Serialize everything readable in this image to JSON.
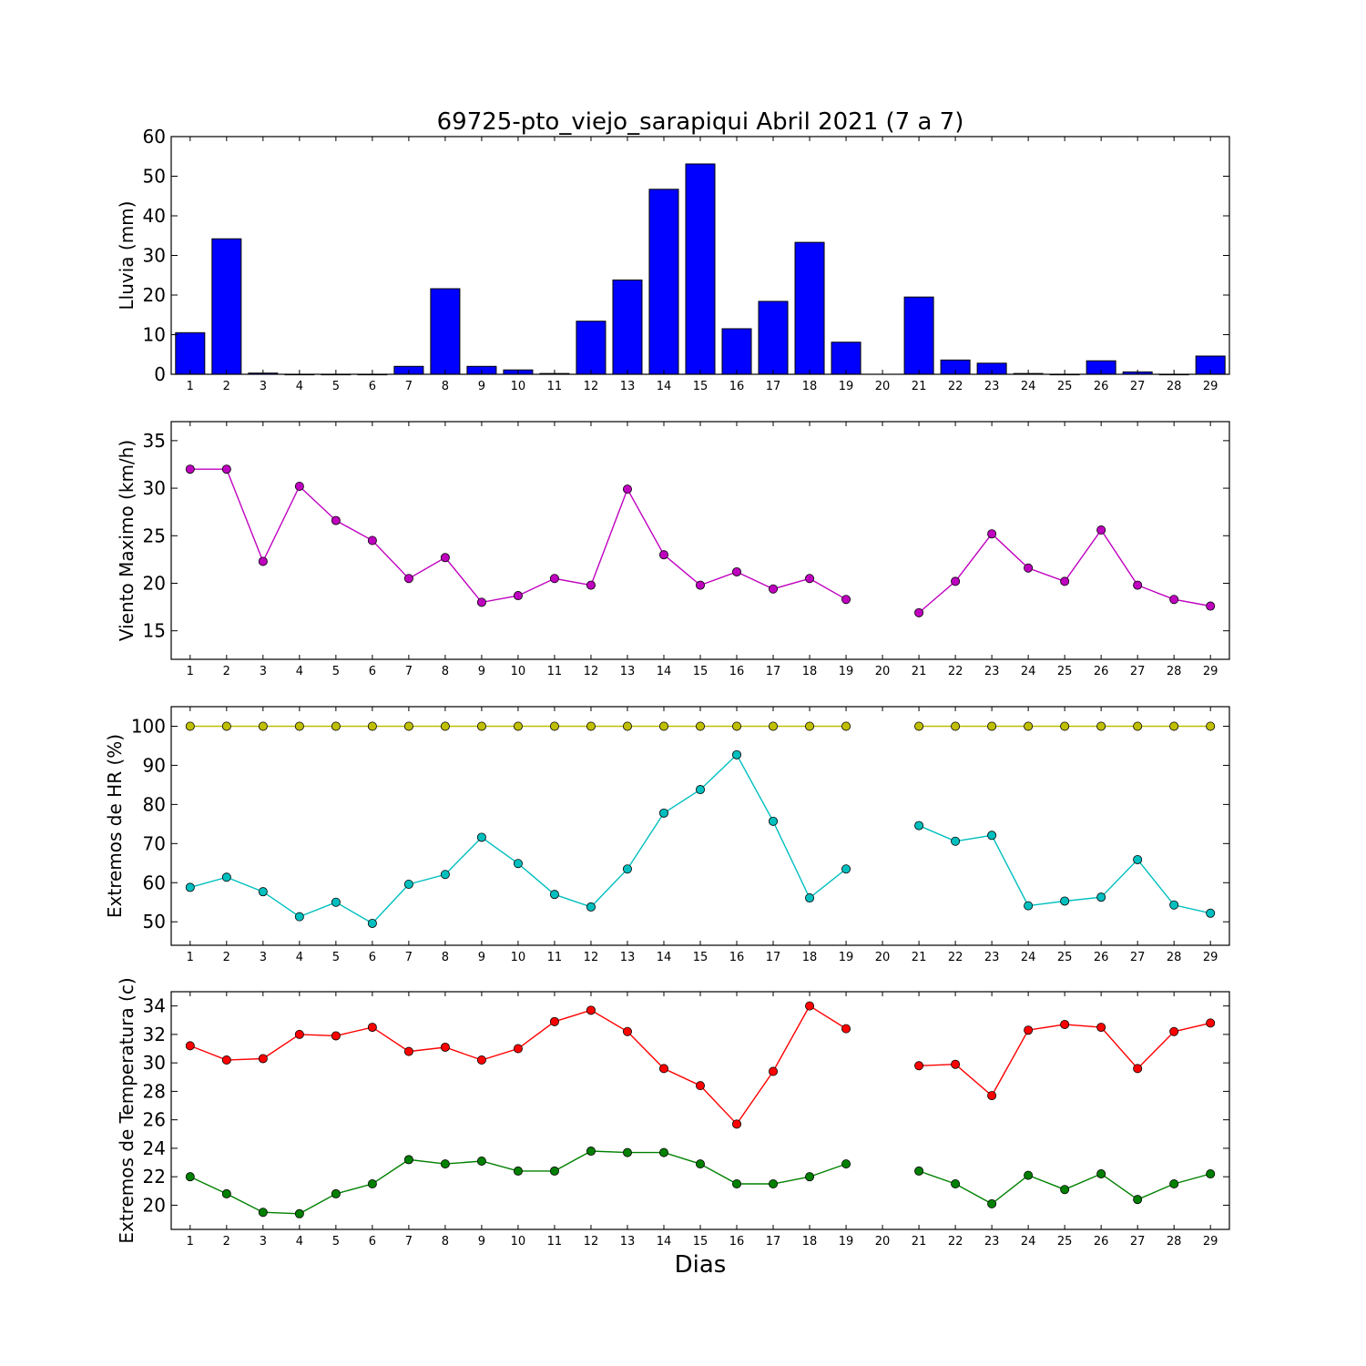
{
  "title": "69725-pto_viejo_sarapiqui Abril 2021  (7 a 7)",
  "xlabel": "Dias",
  "colors": {
    "rain": "#0000ff",
    "wind": "#bf00bf",
    "hr_max": "#bfbf00",
    "hr_min": "#00bfbf",
    "t_max": "#ff0000",
    "t_min": "#008000"
  },
  "chart_data": [
    {
      "type": "bar",
      "ylabel": "Lluvia (mm)",
      "categories": [
        "1",
        "2",
        "3",
        "4",
        "5",
        "6",
        "7",
        "8",
        "9",
        "10",
        "11",
        "12",
        "13",
        "14",
        "15",
        "16",
        "17",
        "18",
        "19",
        "20",
        "21",
        "22",
        "23",
        "24",
        "25",
        "26",
        "27",
        "28",
        "29"
      ],
      "ylim": [
        0,
        60
      ],
      "yticks": [
        0,
        10,
        20,
        30,
        40,
        50,
        60
      ],
      "values": [
        10.5,
        34.2,
        0.3,
        0.0,
        0.0,
        0.0,
        2.0,
        21.6,
        2.0,
        1.1,
        0.2,
        13.4,
        23.8,
        46.7,
        53.1,
        11.5,
        18.4,
        33.3,
        8.1,
        null,
        19.5,
        3.6,
        2.8,
        0.2,
        0.0,
        3.4,
        0.6,
        0.0,
        4.6
      ]
    },
    {
      "type": "line",
      "ylabel": "Viento Maximo (km/h)",
      "categories": [
        "1",
        "2",
        "3",
        "4",
        "5",
        "6",
        "7",
        "8",
        "9",
        "10",
        "11",
        "12",
        "13",
        "14",
        "15",
        "16",
        "17",
        "18",
        "19",
        "20",
        "21",
        "22",
        "23",
        "24",
        "25",
        "26",
        "27",
        "28",
        "29"
      ],
      "ylim": [
        12,
        37
      ],
      "yticks": [
        15,
        20,
        25,
        30,
        35
      ],
      "series": [
        {
          "values": [
            32.0,
            32.0,
            22.3,
            30.2,
            26.6,
            24.5,
            20.5,
            22.7,
            18.0,
            18.7,
            20.5,
            19.8,
            29.9,
            23.0,
            19.8,
            21.2,
            19.4,
            20.5,
            18.3,
            null,
            16.9,
            20.2,
            25.2,
            21.6,
            20.2,
            25.6,
            19.8,
            18.3,
            17.6
          ]
        }
      ]
    },
    {
      "type": "line",
      "ylabel": "Extremos de HR (%)",
      "categories": [
        "1",
        "2",
        "3",
        "4",
        "5",
        "6",
        "7",
        "8",
        "9",
        "10",
        "11",
        "12",
        "13",
        "14",
        "15",
        "16",
        "17",
        "18",
        "19",
        "20",
        "21",
        "22",
        "23",
        "24",
        "25",
        "26",
        "27",
        "28",
        "29"
      ],
      "ylim": [
        44,
        105
      ],
      "yticks": [
        50,
        60,
        70,
        80,
        90,
        100
      ],
      "series": [
        {
          "values": [
            100,
            100,
            100,
            100,
            100,
            100,
            100,
            100,
            100,
            100,
            100,
            100,
            100,
            100,
            100,
            100,
            100,
            100,
            100,
            null,
            100,
            100,
            100,
            100,
            100,
            100,
            100,
            100,
            100
          ]
        },
        {
          "values": [
            58.8,
            61.4,
            57.7,
            51.3,
            55.0,
            49.6,
            59.6,
            62.1,
            71.6,
            64.9,
            57.0,
            53.8,
            63.5,
            77.8,
            83.8,
            92.7,
            75.7,
            56.1,
            63.5,
            null,
            74.6,
            70.6,
            72.1,
            54.1,
            55.3,
            56.3,
            65.9,
            54.3,
            52.2
          ]
        }
      ]
    },
    {
      "type": "line",
      "ylabel": "Extremos de Temperatura (c)",
      "categories": [
        "1",
        "2",
        "3",
        "4",
        "5",
        "6",
        "7",
        "8",
        "9",
        "10",
        "11",
        "12",
        "13",
        "14",
        "15",
        "16",
        "17",
        "18",
        "19",
        "20",
        "21",
        "22",
        "23",
        "24",
        "25",
        "26",
        "27",
        "28",
        "29"
      ],
      "ylim": [
        18.3,
        35
      ],
      "yticks": [
        20,
        22,
        24,
        26,
        28,
        30,
        32,
        34
      ],
      "series": [
        {
          "values": [
            31.2,
            30.2,
            30.3,
            32.0,
            31.9,
            32.5,
            30.8,
            31.1,
            30.2,
            31.0,
            32.9,
            33.7,
            32.2,
            29.6,
            28.4,
            25.7,
            29.4,
            34.0,
            32.4,
            null,
            29.8,
            29.9,
            27.7,
            32.3,
            32.7,
            32.5,
            29.6,
            32.2,
            32.8
          ]
        },
        {
          "values": [
            22.0,
            20.8,
            19.5,
            19.4,
            20.8,
            21.5,
            23.2,
            22.9,
            23.1,
            22.4,
            22.4,
            23.8,
            23.7,
            23.7,
            22.9,
            21.5,
            21.5,
            22.0,
            22.9,
            null,
            22.4,
            21.5,
            20.1,
            22.1,
            21.1,
            22.2,
            20.4,
            21.5,
            22.2
          ]
        }
      ]
    }
  ]
}
